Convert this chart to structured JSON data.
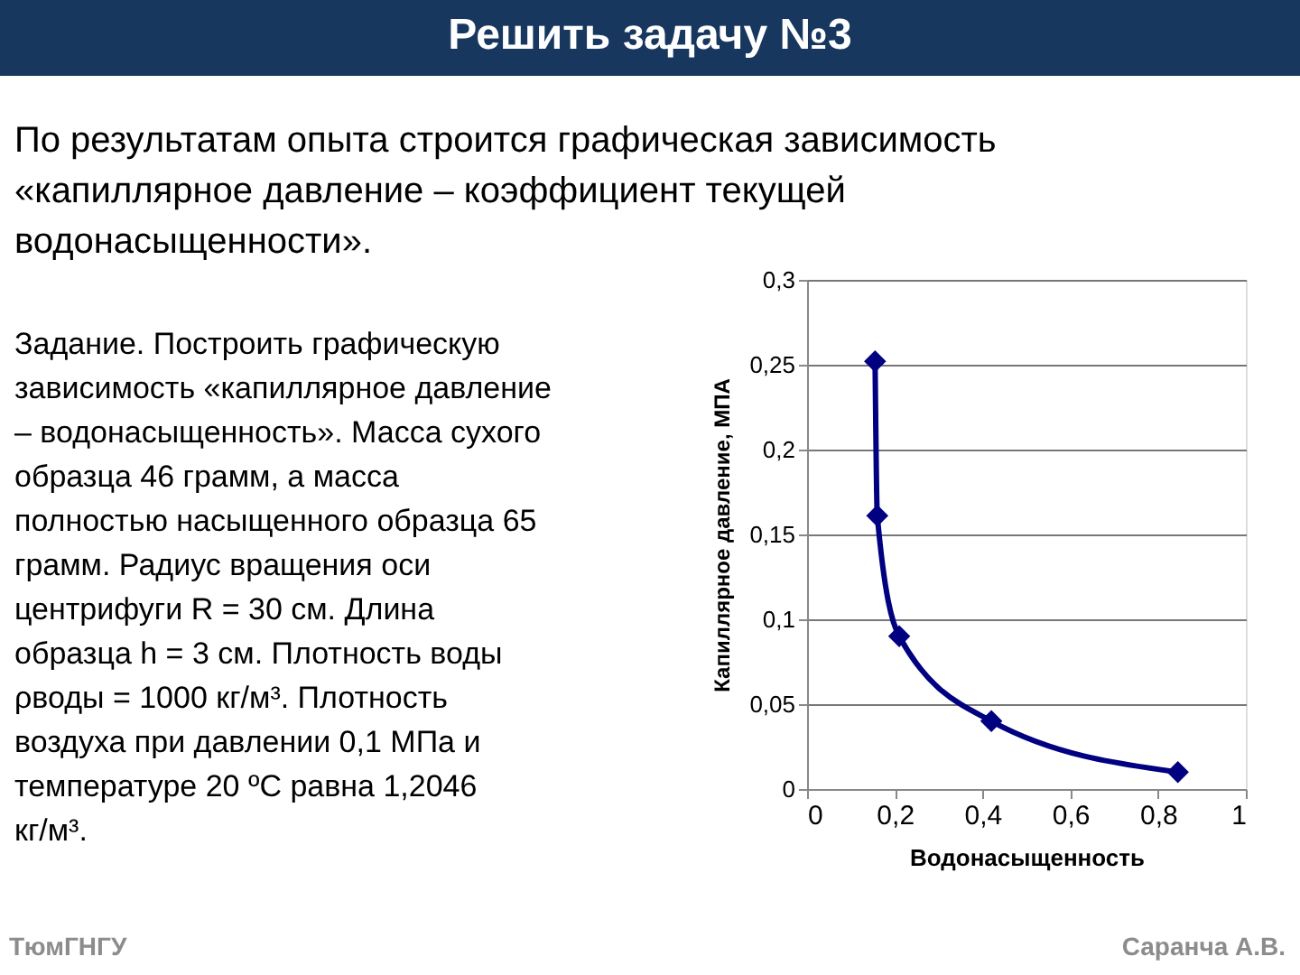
{
  "chart_data": {
    "type": "line",
    "title": "Решить задачу №3",
    "xlabel": "Водонасыщенность",
    "ylabel": "Капиллярное давление, МПА",
    "x": [
      0.155,
      0.16,
      0.21,
      0.42,
      0.845
    ],
    "series": [
      {
        "color": "#000080",
        "values": [
          0.252,
          0.161,
          0.09,
          0.04,
          0.01
        ]
      }
    ],
    "xlim": [
      0,
      1
    ],
    "xticks": [
      0,
      {
        "value": 0.2,
        "label": "0,2"
      },
      {
        "value": 0.4,
        "label": "0,4"
      },
      {
        "value": 0.6,
        "label": "0,6"
      },
      {
        "value": 0.8,
        "label": "0,8"
      },
      1
    ],
    "ylim": [
      0,
      0.3
    ],
    "yticks": [
      0,
      {
        "value": 0.05,
        "label": "0,05"
      },
      {
        "value": 0.1,
        "label": "0,1"
      },
      {
        "value": 0.15,
        "label": "0,15"
      },
      {
        "value": 0.2,
        "label": "0,2"
      },
      {
        "value": 0.25,
        "label": "0,25"
      },
      {
        "value": 0.3,
        "label": "0,3"
      }
    ],
    "grid": "y",
    "marker": "diamond",
    "line_style": "solid",
    "annotations": [
      "По результатам опыта строится графическая зависимость «капиллярное давление – коэффициент текущей водонасыщенности».",
      "Задание. Построить графическую зависимость «капиллярное давление – водонасыщенность». Масса сухого образца 46 грамм, а масса полностью насыщенного образца 65 грамм. Радиус вращения оси центрифуги R = 30 см. Длина образца h = 3 см. Плотность воды ρводы = 1000 кг/м³. Плотность воздуха при давлении 0,1 МПа и температуре 20 ºС равна 1,2046 кг/м³.",
      "ТюмГНГУ",
      "Саранча А.В."
    ]
  }
}
